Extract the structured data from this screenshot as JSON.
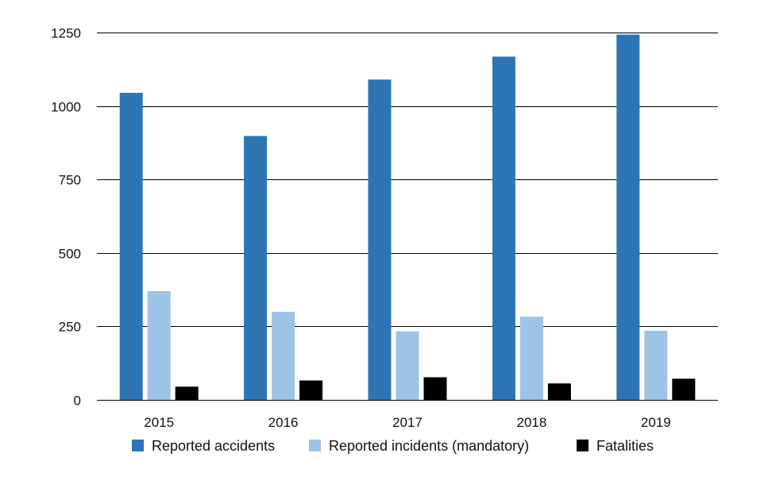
{
  "chart_data": {
    "type": "bar",
    "title": "",
    "xlabel": "",
    "ylabel": "",
    "categories": [
      "2015",
      "2016",
      "2017",
      "2018",
      "2019"
    ],
    "ylim": [
      0,
      1250
    ],
    "yticks": [
      0,
      250,
      500,
      750,
      1000,
      1250
    ],
    "grid": true,
    "legend_position": "bottom",
    "series": [
      {
        "name": "Reported accidents",
        "color": "#2E75B6",
        "values": [
          1045,
          898,
          1090,
          1168,
          1243
        ]
      },
      {
        "name": "Reported incidents (mandatory)",
        "color": "#9DC3E6",
        "values": [
          370,
          300,
          233,
          283,
          235
        ]
      },
      {
        "name": "Fatalities",
        "color": "#000000",
        "values": [
          45,
          66,
          77,
          56,
          72
        ]
      }
    ]
  }
}
